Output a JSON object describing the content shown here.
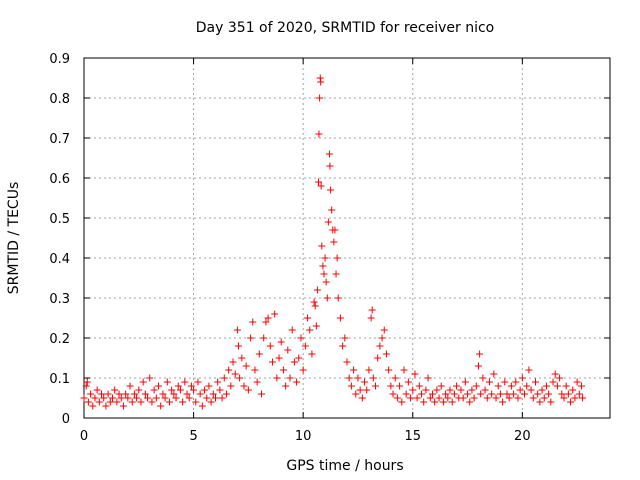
{
  "chart_data": {
    "type": "scatter",
    "title": "Day 351 of 2020, SRMTID for receiver nico",
    "xlabel": "GPS time / hours",
    "ylabel": "SRMTID / TECUs",
    "xlim": [
      0,
      24
    ],
    "ylim": [
      0,
      0.9
    ],
    "xticks": [
      0,
      5,
      10,
      15,
      20
    ],
    "yticks": [
      0,
      0.1,
      0.2,
      0.3,
      0.4,
      0.5,
      0.6,
      0.7,
      0.8,
      0.9
    ],
    "grid": true,
    "marker": "+",
    "color": "#ff0000",
    "series": [
      {
        "name": "SRMTID",
        "points": [
          [
            0.0,
            0.05
          ],
          [
            0.1,
            0.08
          ],
          [
            0.15,
            0.09
          ],
          [
            0.2,
            0.04
          ],
          [
            0.3,
            0.06
          ],
          [
            0.4,
            0.03
          ],
          [
            0.5,
            0.05
          ],
          [
            0.6,
            0.07
          ],
          [
            0.7,
            0.04
          ],
          [
            0.8,
            0.06
          ],
          [
            0.9,
            0.05
          ],
          [
            1.0,
            0.03
          ],
          [
            1.1,
            0.06
          ],
          [
            1.2,
            0.04
          ],
          [
            1.3,
            0.05
          ],
          [
            1.4,
            0.07
          ],
          [
            1.5,
            0.04
          ],
          [
            1.6,
            0.06
          ],
          [
            1.7,
            0.05
          ],
          [
            1.8,
            0.03
          ],
          [
            1.9,
            0.06
          ],
          [
            2.0,
            0.05
          ],
          [
            2.1,
            0.08
          ],
          [
            2.2,
            0.04
          ],
          [
            2.3,
            0.06
          ],
          [
            2.4,
            0.05
          ],
          [
            2.5,
            0.07
          ],
          [
            2.6,
            0.04
          ],
          [
            2.7,
            0.09
          ],
          [
            2.8,
            0.06
          ],
          [
            2.9,
            0.05
          ],
          [
            3.0,
            0.1
          ],
          [
            3.1,
            0.04
          ],
          [
            3.2,
            0.07
          ],
          [
            3.3,
            0.05
          ],
          [
            3.4,
            0.08
          ],
          [
            3.5,
            0.03
          ],
          [
            3.6,
            0.06
          ],
          [
            3.7,
            0.05
          ],
          [
            3.8,
            0.09
          ],
          [
            3.9,
            0.04
          ],
          [
            4.0,
            0.07
          ],
          [
            4.1,
            0.06
          ],
          [
            4.2,
            0.05
          ],
          [
            4.3,
            0.08
          ],
          [
            4.4,
            0.07
          ],
          [
            4.5,
            0.04
          ],
          [
            4.6,
            0.09
          ],
          [
            4.7,
            0.06
          ],
          [
            4.8,
            0.05
          ],
          [
            4.9,
            0.08
          ],
          [
            5.0,
            0.07
          ],
          [
            5.1,
            0.04
          ],
          [
            5.2,
            0.09
          ],
          [
            5.3,
            0.06
          ],
          [
            5.4,
            0.03
          ],
          [
            5.5,
            0.07
          ],
          [
            5.6,
            0.05
          ],
          [
            5.7,
            0.08
          ],
          [
            5.8,
            0.04
          ],
          [
            5.9,
            0.06
          ],
          [
            6.0,
            0.05
          ],
          [
            6.1,
            0.09
          ],
          [
            6.2,
            0.07
          ],
          [
            6.3,
            0.05
          ],
          [
            6.4,
            0.1
          ],
          [
            6.5,
            0.06
          ],
          [
            6.6,
            0.12
          ],
          [
            6.7,
            0.08
          ],
          [
            6.8,
            0.14
          ],
          [
            6.9,
            0.11
          ],
          [
            7.0,
            0.22
          ],
          [
            7.05,
            0.18
          ],
          [
            7.1,
            0.1
          ],
          [
            7.2,
            0.15
          ],
          [
            7.3,
            0.08
          ],
          [
            7.4,
            0.13
          ],
          [
            7.5,
            0.07
          ],
          [
            7.6,
            0.2
          ],
          [
            7.7,
            0.24
          ],
          [
            7.8,
            0.12
          ],
          [
            7.9,
            0.09
          ],
          [
            8.0,
            0.16
          ],
          [
            8.1,
            0.06
          ],
          [
            8.2,
            0.2
          ],
          [
            8.3,
            0.24
          ],
          [
            8.4,
            0.25
          ],
          [
            8.5,
            0.18
          ],
          [
            8.6,
            0.14
          ],
          [
            8.7,
            0.26
          ],
          [
            8.8,
            0.1
          ],
          [
            8.9,
            0.15
          ],
          [
            9.0,
            0.19
          ],
          [
            9.1,
            0.12
          ],
          [
            9.2,
            0.08
          ],
          [
            9.3,
            0.17
          ],
          [
            9.4,
            0.1
          ],
          [
            9.5,
            0.22
          ],
          [
            9.6,
            0.14
          ],
          [
            9.7,
            0.09
          ],
          [
            9.8,
            0.15
          ],
          [
            9.9,
            0.2
          ],
          [
            10.0,
            0.12
          ],
          [
            10.1,
            0.18
          ],
          [
            10.2,
            0.25
          ],
          [
            10.3,
            0.22
          ],
          [
            10.4,
            0.16
          ],
          [
            10.5,
            0.29
          ],
          [
            10.55,
            0.28
          ],
          [
            10.6,
            0.23
          ],
          [
            10.65,
            0.32
          ],
          [
            10.7,
            0.59
          ],
          [
            10.72,
            0.71
          ],
          [
            10.75,
            0.8
          ],
          [
            10.78,
            0.85
          ],
          [
            10.8,
            0.84
          ],
          [
            10.82,
            0.58
          ],
          [
            10.85,
            0.43
          ],
          [
            10.9,
            0.38
          ],
          [
            10.95,
            0.36
          ],
          [
            11.0,
            0.4
          ],
          [
            11.05,
            0.34
          ],
          [
            11.1,
            0.3
          ],
          [
            11.15,
            0.49
          ],
          [
            11.2,
            0.66
          ],
          [
            11.22,
            0.63
          ],
          [
            11.25,
            0.57
          ],
          [
            11.3,
            0.52
          ],
          [
            11.35,
            0.47
          ],
          [
            11.4,
            0.44
          ],
          [
            11.45,
            0.47
          ],
          [
            11.5,
            0.36
          ],
          [
            11.55,
            0.4
          ],
          [
            11.6,
            0.3
          ],
          [
            11.7,
            0.25
          ],
          [
            11.8,
            0.18
          ],
          [
            11.9,
            0.2
          ],
          [
            12.0,
            0.14
          ],
          [
            12.1,
            0.1
          ],
          [
            12.2,
            0.08
          ],
          [
            12.3,
            0.12
          ],
          [
            12.4,
            0.06
          ],
          [
            12.5,
            0.1
          ],
          [
            12.6,
            0.07
          ],
          [
            12.7,
            0.05
          ],
          [
            12.8,
            0.09
          ],
          [
            12.9,
            0.07
          ],
          [
            13.0,
            0.12
          ],
          [
            13.1,
            0.25
          ],
          [
            13.15,
            0.27
          ],
          [
            13.2,
            0.1
          ],
          [
            13.3,
            0.08
          ],
          [
            13.4,
            0.15
          ],
          [
            13.5,
            0.18
          ],
          [
            13.6,
            0.2
          ],
          [
            13.7,
            0.22
          ],
          [
            13.8,
            0.16
          ],
          [
            13.9,
            0.12
          ],
          [
            14.0,
            0.08
          ],
          [
            14.1,
            0.06
          ],
          [
            14.2,
            0.1
          ],
          [
            14.3,
            0.05
          ],
          [
            14.4,
            0.08
          ],
          [
            14.5,
            0.04
          ],
          [
            14.6,
            0.12
          ],
          [
            14.7,
            0.06
          ],
          [
            14.8,
            0.09
          ],
          [
            14.9,
            0.05
          ],
          [
            15.0,
            0.07
          ],
          [
            15.1,
            0.11
          ],
          [
            15.2,
            0.05
          ],
          [
            15.3,
            0.08
          ],
          [
            15.4,
            0.06
          ],
          [
            15.5,
            0.04
          ],
          [
            15.6,
            0.07
          ],
          [
            15.7,
            0.1
          ],
          [
            15.8,
            0.05
          ],
          [
            15.9,
            0.06
          ],
          [
            16.0,
            0.04
          ],
          [
            16.1,
            0.07
          ],
          [
            16.2,
            0.05
          ],
          [
            16.3,
            0.08
          ],
          [
            16.4,
            0.04
          ],
          [
            16.5,
            0.06
          ],
          [
            16.6,
            0.05
          ],
          [
            16.7,
            0.07
          ],
          [
            16.8,
            0.04
          ],
          [
            16.9,
            0.06
          ],
          [
            17.0,
            0.08
          ],
          [
            17.1,
            0.05
          ],
          [
            17.2,
            0.07
          ],
          [
            17.3,
            0.05
          ],
          [
            17.4,
            0.09
          ],
          [
            17.5,
            0.06
          ],
          [
            17.6,
            0.04
          ],
          [
            17.7,
            0.07
          ],
          [
            17.8,
            0.05
          ],
          [
            17.9,
            0.08
          ],
          [
            18.0,
            0.13
          ],
          [
            18.05,
            0.16
          ],
          [
            18.1,
            0.06
          ],
          [
            18.2,
            0.1
          ],
          [
            18.3,
            0.07
          ],
          [
            18.4,
            0.05
          ],
          [
            18.5,
            0.09
          ],
          [
            18.6,
            0.06
          ],
          [
            18.7,
            0.11
          ],
          [
            18.8,
            0.05
          ],
          [
            18.9,
            0.08
          ],
          [
            19.0,
            0.06
          ],
          [
            19.1,
            0.04
          ],
          [
            19.2,
            0.09
          ],
          [
            19.3,
            0.06
          ],
          [
            19.4,
            0.05
          ],
          [
            19.5,
            0.08
          ],
          [
            19.6,
            0.06
          ],
          [
            19.7,
            0.09
          ],
          [
            19.8,
            0.05
          ],
          [
            19.9,
            0.07
          ],
          [
            20.0,
            0.1
          ],
          [
            20.1,
            0.06
          ],
          [
            20.2,
            0.08
          ],
          [
            20.3,
            0.12
          ],
          [
            20.4,
            0.07
          ],
          [
            20.5,
            0.05
          ],
          [
            20.6,
            0.09
          ],
          [
            20.7,
            0.06
          ],
          [
            20.8,
            0.04
          ],
          [
            20.9,
            0.07
          ],
          [
            21.0,
            0.05
          ],
          [
            21.1,
            0.08
          ],
          [
            21.2,
            0.06
          ],
          [
            21.3,
            0.04
          ],
          [
            21.4,
            0.09
          ],
          [
            21.5,
            0.11
          ],
          [
            21.6,
            0.08
          ],
          [
            21.7,
            0.1
          ],
          [
            21.8,
            0.06
          ],
          [
            21.9,
            0.05
          ],
          [
            22.0,
            0.08
          ],
          [
            22.1,
            0.06
          ],
          [
            22.2,
            0.04
          ],
          [
            22.3,
            0.07
          ],
          [
            22.4,
            0.05
          ],
          [
            22.5,
            0.09
          ],
          [
            22.6,
            0.06
          ],
          [
            22.7,
            0.08
          ],
          [
            22.75,
            0.05
          ]
        ]
      }
    ]
  }
}
